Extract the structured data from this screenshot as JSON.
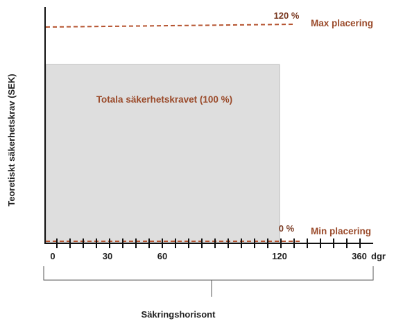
{
  "colors": {
    "accent": "#b5532f",
    "accent_text": "#9a4a2a",
    "box_fill": "#dedede",
    "box_stroke": "#b8b8b8",
    "axis": "#111111"
  },
  "y_axis": {
    "label": "Teoretiskt säkerhetskrav (SEK)"
  },
  "x_axis": {
    "ticks": [
      "0",
      "30",
      "60",
      "120",
      "360"
    ],
    "unit": "dgr"
  },
  "lines": {
    "max": {
      "percent_label": "120 %",
      "label": "Max placering"
    },
    "min": {
      "percent_label": "0 %",
      "label": "Min placering"
    }
  },
  "requirement_box": {
    "label": "Totala säkerhetskravet (100 %)"
  },
  "horizon": {
    "label": "Säkringshorisont"
  }
}
